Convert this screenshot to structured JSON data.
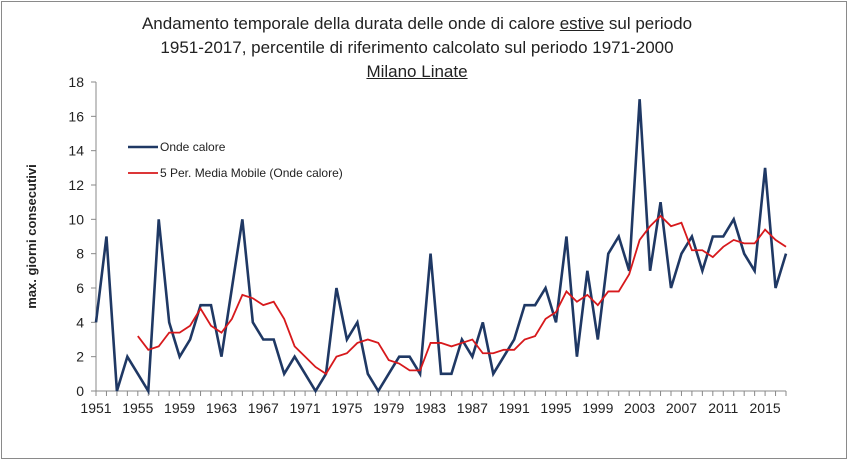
{
  "chart_data": {
    "type": "line",
    "title": [
      "Andamento temporale della durata delle onde di calore",
      "estive",
      "sul periodo",
      "1951-2017, percentile di riferimento calcolato  sul periodo 1971-2000",
      "Milano Linate"
    ],
    "xlabel": "",
    "ylabel": "max. giorni consecutivi",
    "ylim": [
      0,
      18
    ],
    "yticks": [
      0,
      2,
      4,
      6,
      8,
      10,
      12,
      14,
      16,
      18
    ],
    "xticks": [
      1951,
      1955,
      1959,
      1963,
      1967,
      1971,
      1975,
      1979,
      1983,
      1987,
      1991,
      1995,
      1999,
      2003,
      2007,
      2011,
      2015
    ],
    "x_start": 1951,
    "x_end": 2017,
    "legend_position": "top-left",
    "series": [
      {
        "name": "Onde calore",
        "color": "#1f3864",
        "values": [
          4,
          9,
          0,
          2,
          1,
          0,
          10,
          4,
          2,
          3,
          5,
          5,
          2,
          6,
          10,
          4,
          3,
          3,
          1,
          2,
          1,
          0,
          1,
          6,
          3,
          4,
          1,
          0,
          1,
          2,
          2,
          1,
          8,
          1,
          1,
          3,
          2,
          4,
          1,
          2,
          3,
          5,
          5,
          6,
          4,
          9,
          2,
          7,
          3,
          8,
          9,
          7,
          17,
          7,
          11,
          6,
          8,
          9,
          7,
          9,
          9,
          10,
          8,
          7,
          13,
          6,
          8
        ]
      },
      {
        "name": "5 Per. Media Mobile (Onde calore)",
        "color": "#d7191c",
        "moving_average_of": 0,
        "period": 5
      }
    ]
  }
}
